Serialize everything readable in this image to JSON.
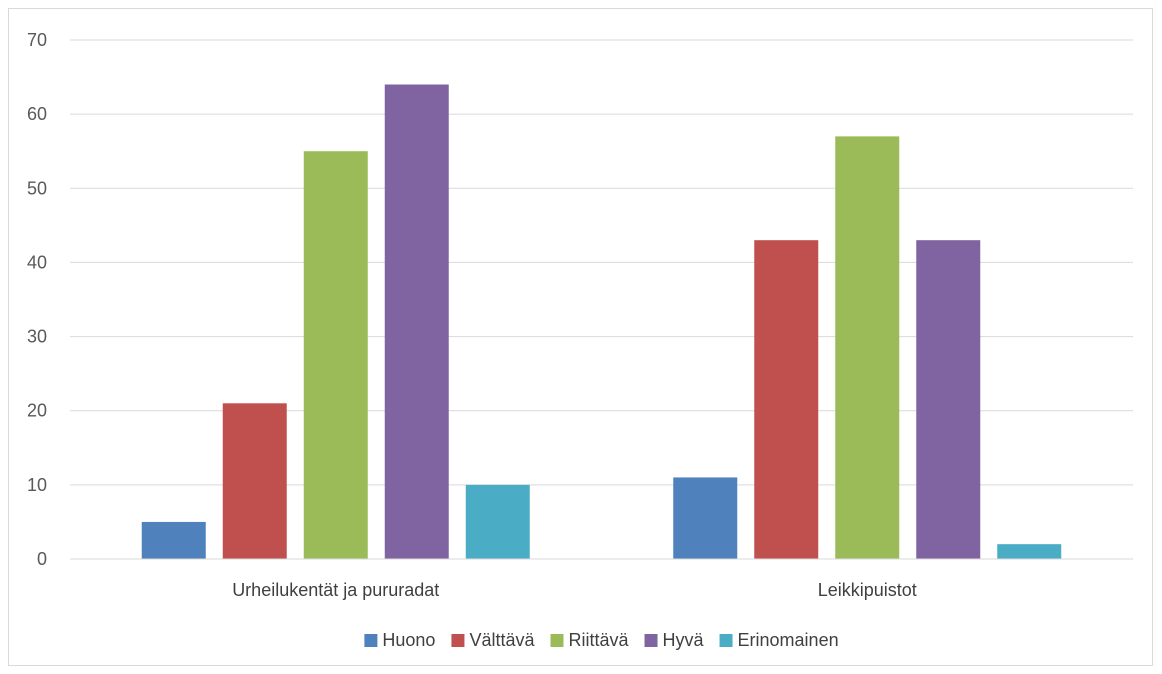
{
  "chart_data": {
    "type": "bar",
    "categories": [
      "Urheilukentät ja pururadat",
      "Leikkipuistot"
    ],
    "series": [
      {
        "name": "Huono",
        "color": "#4f81bd",
        "values": [
          5,
          11
        ]
      },
      {
        "name": "Välttävä",
        "color": "#c0504d",
        "values": [
          21,
          43
        ]
      },
      {
        "name": "Riittävä",
        "color": "#9bbb59",
        "values": [
          55,
          57
        ]
      },
      {
        "name": "Hyvä",
        "color": "#8064a2",
        "values": [
          64,
          43
        ]
      },
      {
        "name": "Erinomainen",
        "color": "#4bacc6",
        "values": [
          10,
          2
        ]
      }
    ],
    "ylim": [
      0,
      70
    ],
    "yticks": [
      0,
      10,
      20,
      30,
      40,
      50,
      60,
      70
    ],
    "grid": true,
    "legend_position": "bottom"
  }
}
